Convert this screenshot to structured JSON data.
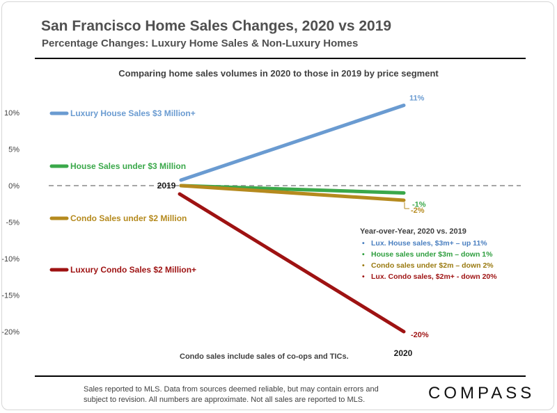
{
  "header": {
    "title": "San Francisco Home Sales Changes, 2020 vs 2019",
    "subtitle": "Percentage Changes: Luxury Home Sales & Non-Luxury Homes"
  },
  "chart_data": {
    "type": "line",
    "title": "Comparing home sales volumes in 2020 to those in 2019 by price segment",
    "x": [
      "2019",
      "2020"
    ],
    "ylim": [
      -20,
      10
    ],
    "yticks": [
      10,
      5,
      0,
      -5,
      -10,
      -15,
      -20
    ],
    "ytick_labels": [
      "10%",
      "5%",
      "0%",
      "-5%",
      "-10%",
      "-15%",
      "-20%"
    ],
    "series": [
      {
        "name": "Luxury House Sales $3 Million+",
        "values": [
          0,
          11
        ],
        "end_label": "11%",
        "color": "#6a9bd1"
      },
      {
        "name": "House Sales under $3 Million",
        "values": [
          0,
          -1
        ],
        "end_label": "-1%",
        "color": "#3aa84a"
      },
      {
        "name": "Condo Sales under $2 Million",
        "values": [
          0,
          -2
        ],
        "end_label": "-2%",
        "color": "#b58a1e"
      },
      {
        "name": "Luxury Condo Sales $2 Million+",
        "values": [
          0,
          -20
        ],
        "end_label": "-20%",
        "color": "#9e1212"
      }
    ],
    "annotation": {
      "title": "Year-over-Year, 2020 vs. 2019",
      "items": [
        {
          "text": "Lux. House sales, $3m+ – up 11%",
          "color": "#4a7fc0"
        },
        {
          "text": "House sales under $3m – down 1%",
          "color": "#2e9e3e"
        },
        {
          "text": "Condo sales under $2m – down 2%",
          "color": "#9a7a10"
        },
        {
          "text": "Lux. Condo sales, $2m+ - down 20%",
          "color": "#9e1212"
        }
      ]
    },
    "note": "Condo sales include sales of co-ops and TICs."
  },
  "footer": {
    "disclaimer": "Sales reported to MLS. Data from sources deemed reliable, but may contain errors and subject to revision. All numbers are approximate. Not all sales are reported to MLS.",
    "logo": "COMPASS"
  }
}
